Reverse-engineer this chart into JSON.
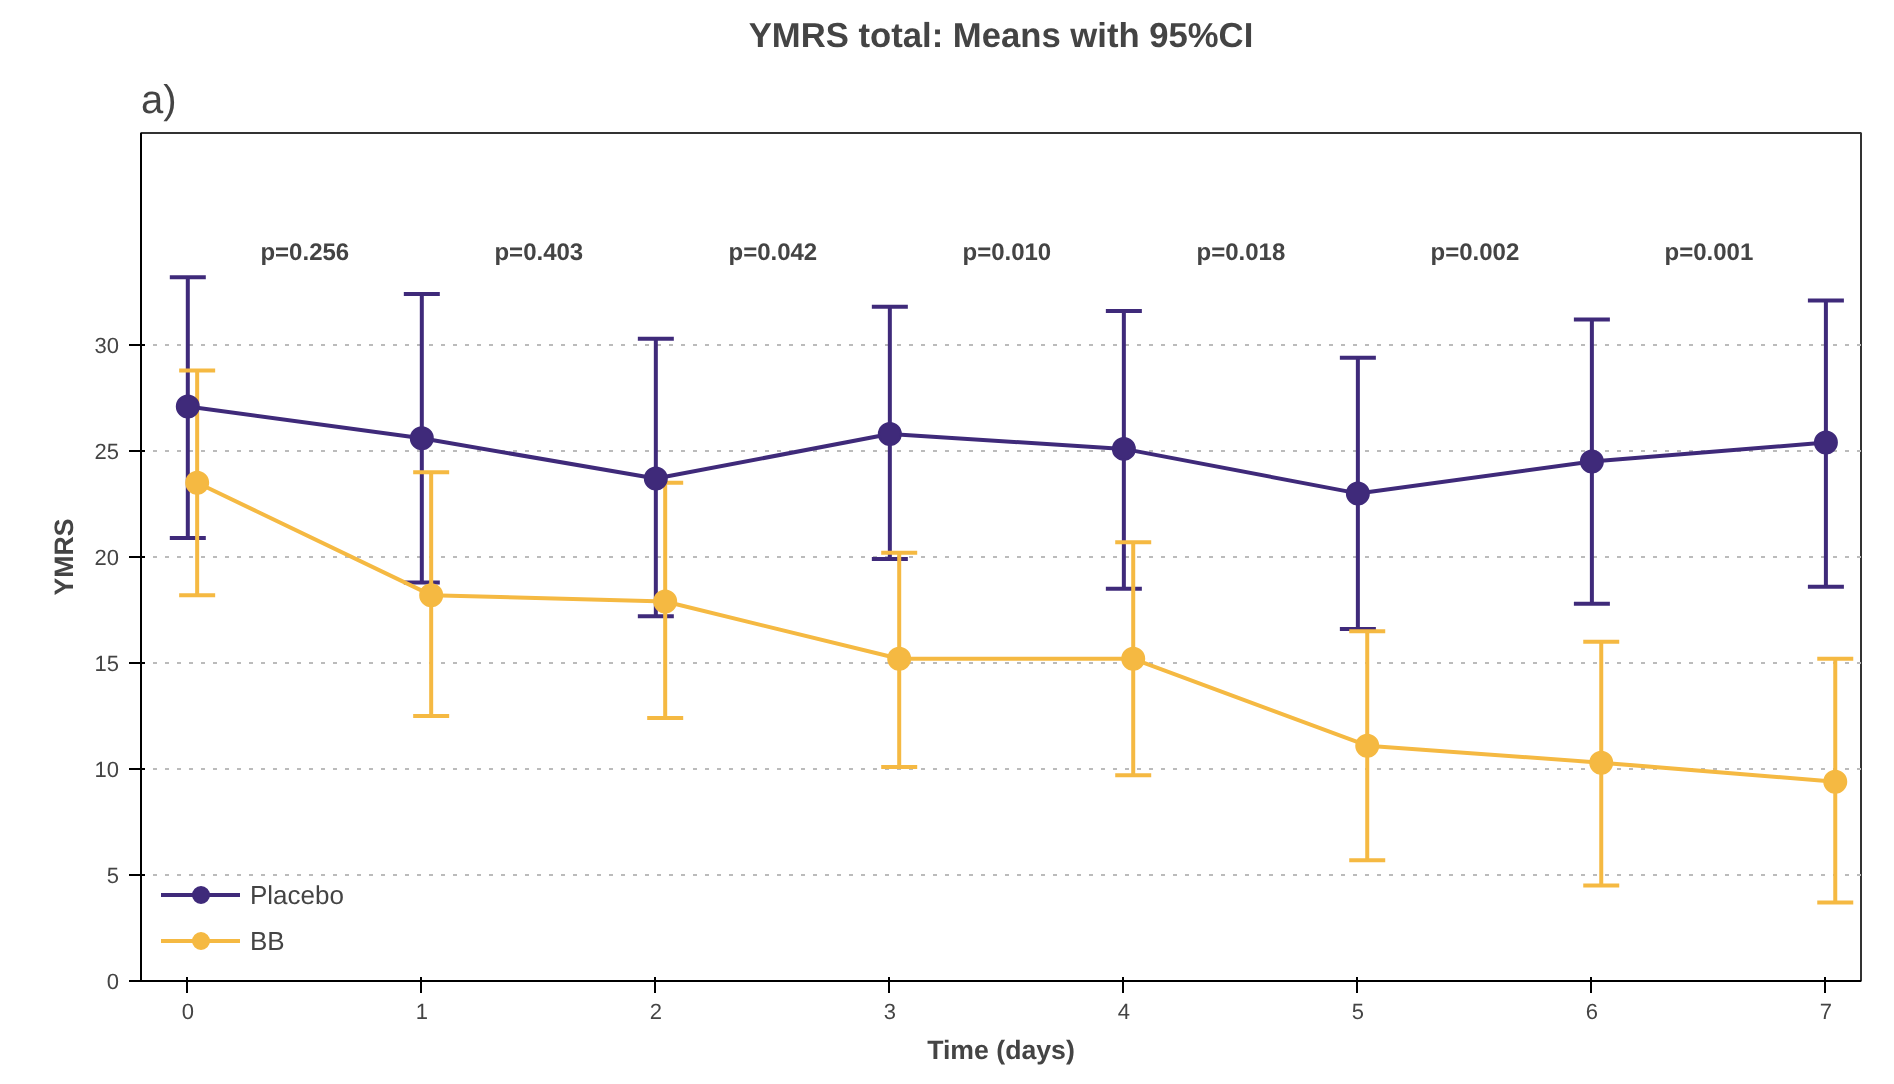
{
  "chart_data": {
    "type": "line",
    "title": "YMRS total: Means with 95%CI",
    "xlabel": "Time (days)",
    "ylabel": "YMRS",
    "xlim": [
      -0.2,
      7.15
    ],
    "ylim": [
      0,
      40
    ],
    "xticks": [
      0,
      1,
      2,
      3,
      4,
      5,
      6,
      7
    ],
    "yticks": [
      0,
      5,
      10,
      15,
      20,
      25,
      30
    ],
    "grid": "y",
    "legend": "bottom left",
    "marker": "circle",
    "line_style": "solid",
    "series": [
      {
        "name": "Placebo",
        "color": "#3f2a7a",
        "x": [
          0,
          1,
          2,
          3,
          4,
          5,
          6,
          7
        ],
        "values": [
          27.1,
          25.6,
          23.7,
          25.8,
          25.1,
          23.0,
          24.5,
          25.4
        ],
        "errors": [
          [
            20.9,
            33.2
          ],
          [
            18.8,
            32.4
          ],
          [
            17.2,
            30.3
          ],
          [
            19.9,
            31.8
          ],
          [
            18.5,
            31.6
          ],
          [
            16.6,
            29.4
          ],
          [
            17.8,
            31.2
          ],
          [
            18.6,
            32.1
          ]
        ]
      },
      {
        "name": "BB",
        "color": "#f5b942",
        "x": [
          0.04,
          1.04,
          2.04,
          3.04,
          4.04,
          5.04,
          6.04,
          7.04
        ],
        "values": [
          23.5,
          18.2,
          17.9,
          15.2,
          15.2,
          11.1,
          10.3,
          9.4
        ],
        "errors": [
          [
            18.2,
            28.8
          ],
          [
            12.5,
            24.0
          ],
          [
            12.4,
            23.5
          ],
          [
            10.1,
            20.2
          ],
          [
            9.7,
            20.7
          ],
          [
            5.7,
            16.5
          ],
          [
            4.5,
            16.0
          ],
          [
            3.7,
            15.2
          ]
        ]
      }
    ],
    "annotations": [
      "a)",
      "p=0.256",
      "p=0.403",
      "p=0.042",
      "p=0.010",
      "p=0.018",
      "p=0.002",
      "p=0.001"
    ]
  }
}
